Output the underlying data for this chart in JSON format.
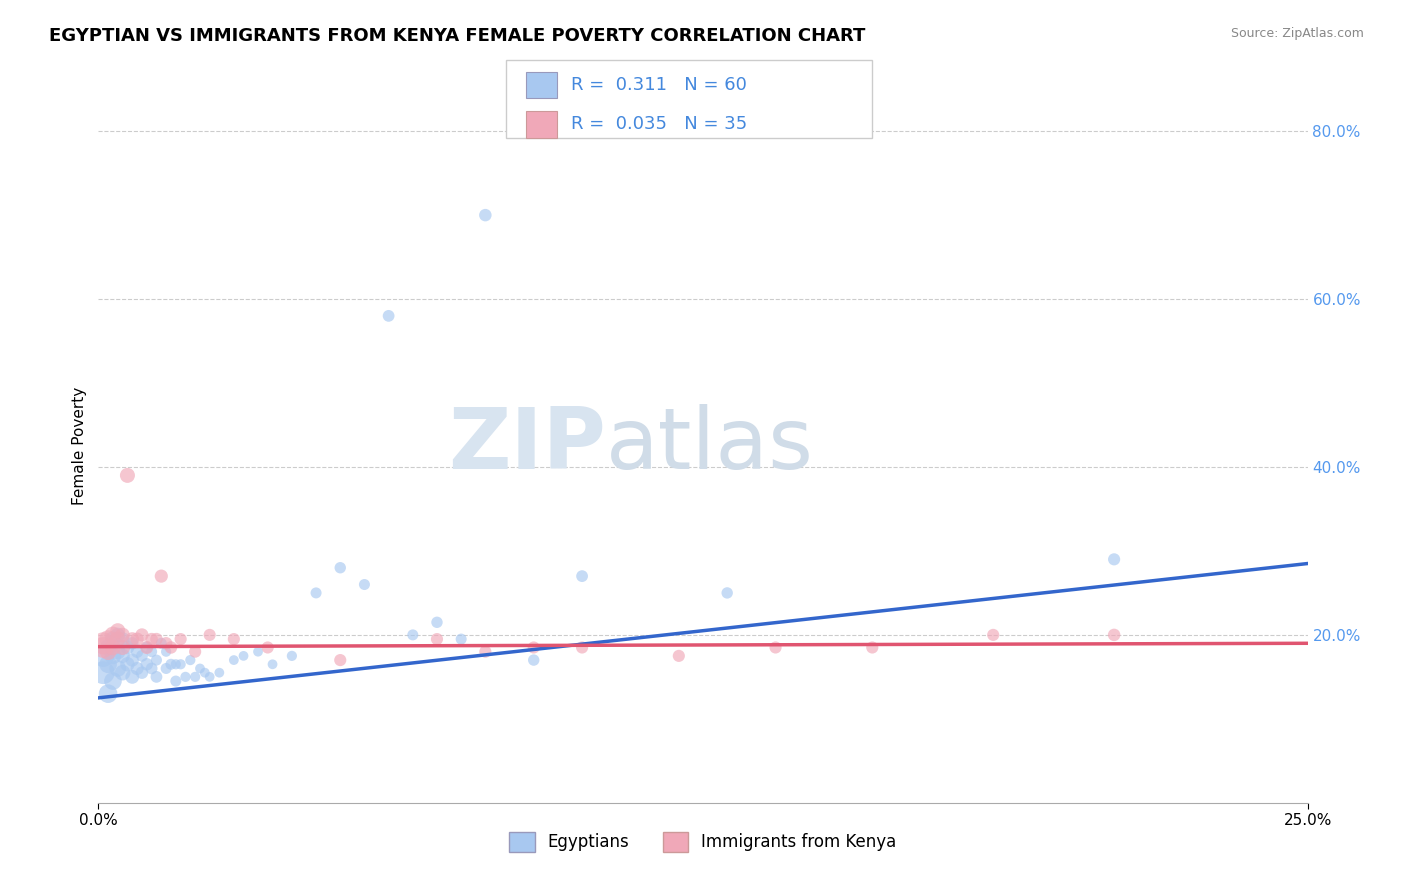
{
  "title": "EGYPTIAN VS IMMIGRANTS FROM KENYA FEMALE POVERTY CORRELATION CHART",
  "source": "Source: ZipAtlas.com",
  "ylabel": "Female Poverty",
  "xlim": [
    0.0,
    0.25
  ],
  "ylim": [
    0.0,
    0.85
  ],
  "ytick_labels_right": [
    "80.0%",
    "60.0%",
    "40.0%",
    "20.0%"
  ],
  "ytick_positions_right": [
    0.8,
    0.6,
    0.4,
    0.2
  ],
  "grid_color": "#cccccc",
  "background_color": "#ffffff",
  "egyptians": {
    "color": "#a8c8f0",
    "line_color": "#3366cc",
    "R": 0.311,
    "N": 60,
    "x": [
      0.001,
      0.001,
      0.002,
      0.002,
      0.002,
      0.003,
      0.003,
      0.003,
      0.004,
      0.004,
      0.004,
      0.005,
      0.005,
      0.005,
      0.006,
      0.006,
      0.007,
      0.007,
      0.007,
      0.008,
      0.008,
      0.009,
      0.009,
      0.01,
      0.01,
      0.011,
      0.011,
      0.012,
      0.012,
      0.013,
      0.014,
      0.014,
      0.015,
      0.016,
      0.016,
      0.017,
      0.018,
      0.019,
      0.02,
      0.021,
      0.022,
      0.023,
      0.025,
      0.028,
      0.03,
      0.033,
      0.036,
      0.04,
      0.045,
      0.05,
      0.055,
      0.06,
      0.065,
      0.07,
      0.075,
      0.08,
      0.09,
      0.1,
      0.13,
      0.21
    ],
    "y": [
      0.155,
      0.175,
      0.13,
      0.165,
      0.185,
      0.145,
      0.175,
      0.195,
      0.16,
      0.18,
      0.2,
      0.155,
      0.175,
      0.195,
      0.165,
      0.185,
      0.15,
      0.17,
      0.19,
      0.16,
      0.18,
      0.155,
      0.175,
      0.165,
      0.185,
      0.16,
      0.18,
      0.15,
      0.17,
      0.19,
      0.16,
      0.18,
      0.165,
      0.145,
      0.165,
      0.165,
      0.15,
      0.17,
      0.15,
      0.16,
      0.155,
      0.15,
      0.155,
      0.17,
      0.175,
      0.18,
      0.165,
      0.175,
      0.25,
      0.28,
      0.26,
      0.58,
      0.2,
      0.215,
      0.195,
      0.7,
      0.17,
      0.27,
      0.25,
      0.29
    ],
    "sizes": [
      300,
      280,
      200,
      180,
      160,
      180,
      160,
      140,
      160,
      140,
      120,
      140,
      120,
      110,
      120,
      110,
      110,
      100,
      90,
      100,
      90,
      90,
      80,
      90,
      80,
      80,
      70,
      80,
      70,
      70,
      70,
      60,
      70,
      70,
      60,
      60,
      60,
      60,
      60,
      55,
      55,
      55,
      55,
      55,
      55,
      55,
      55,
      60,
      70,
      75,
      70,
      80,
      70,
      75,
      70,
      90,
      75,
      80,
      75,
      85
    ]
  },
  "kenya": {
    "color": "#f0a8b8",
    "line_color": "#e05570",
    "R": 0.035,
    "N": 35,
    "x": [
      0.001,
      0.001,
      0.002,
      0.002,
      0.003,
      0.003,
      0.004,
      0.004,
      0.005,
      0.005,
      0.006,
      0.007,
      0.008,
      0.009,
      0.01,
      0.011,
      0.012,
      0.013,
      0.014,
      0.015,
      0.017,
      0.02,
      0.023,
      0.028,
      0.035,
      0.05,
      0.07,
      0.08,
      0.09,
      0.1,
      0.12,
      0.14,
      0.16,
      0.185,
      0.21
    ],
    "y": [
      0.19,
      0.185,
      0.195,
      0.18,
      0.2,
      0.185,
      0.195,
      0.205,
      0.185,
      0.2,
      0.39,
      0.195,
      0.195,
      0.2,
      0.185,
      0.195,
      0.195,
      0.27,
      0.19,
      0.185,
      0.195,
      0.18,
      0.2,
      0.195,
      0.185,
      0.17,
      0.195,
      0.18,
      0.185,
      0.185,
      0.175,
      0.185,
      0.185,
      0.2,
      0.2
    ],
    "sizes": [
      280,
      250,
      180,
      160,
      160,
      140,
      140,
      130,
      130,
      120,
      130,
      110,
      100,
      100,
      100,
      90,
      90,
      100,
      90,
      90,
      85,
      85,
      85,
      85,
      85,
      85,
      85,
      85,
      85,
      85,
      85,
      85,
      85,
      85,
      90
    ]
  },
  "legend_labels": [
    "Egyptians",
    "Immigrants from Kenya"
  ],
  "watermark_zip": "ZIP",
  "watermark_atlas": "atlas",
  "title_fontsize": 13,
  "axis_fontsize": 11,
  "legend_fontsize": 13
}
